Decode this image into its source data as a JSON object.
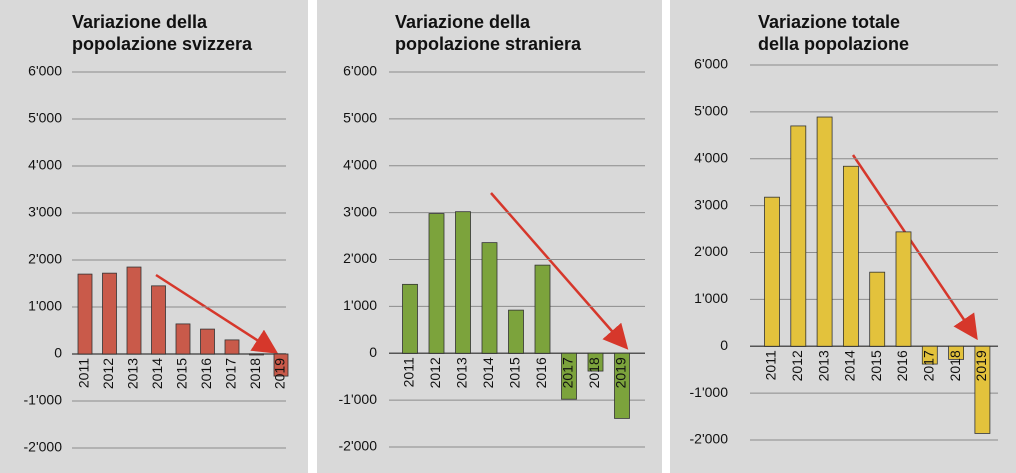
{
  "chart_data": [
    {
      "type": "bar",
      "title": [
        "Variazione della",
        "popolazione svizzera"
      ],
      "color": "#c95a4a",
      "categories": [
        "2011",
        "2012",
        "2013",
        "2014",
        "2015",
        "2016",
        "2017",
        "2018",
        "2019"
      ],
      "values": [
        1700,
        1720,
        1850,
        1450,
        640,
        530,
        300,
        -20,
        -470
      ],
      "ylim": [
        -2000,
        6000
      ],
      "yticks": [
        {
          "value": -2000,
          "label": "-2'000"
        },
        {
          "value": -1000,
          "label": "-1'000"
        },
        0,
        {
          "value": 1000,
          "label": "1'000"
        },
        {
          "value": 2000,
          "label": "2'000"
        },
        {
          "value": 3000,
          "label": "3'000"
        },
        {
          "value": 4000,
          "label": "4'000"
        },
        {
          "value": 5000,
          "label": "5'000"
        },
        {
          "value": 6000,
          "label": "6'000"
        }
      ],
      "grid": true
    },
    {
      "type": "bar",
      "title": [
        "Variazione della",
        "popolazione straniera"
      ],
      "color": "#7ca33c",
      "categories": [
        "2011",
        "2012",
        "2013",
        "2014",
        "2015",
        "2016",
        "2017",
        "2018",
        "2019"
      ],
      "values": [
        1470,
        2980,
        3020,
        2360,
        920,
        1880,
        -980,
        -380,
        -1390
      ],
      "ylim": [
        -2000,
        6000
      ],
      "yticks": [
        {
          "value": -2000,
          "label": "-2'000"
        },
        {
          "value": -1000,
          "label": "-1'000"
        },
        0,
        {
          "value": 1000,
          "label": "1'000"
        },
        {
          "value": 2000,
          "label": "2'000"
        },
        {
          "value": 3000,
          "label": "3'000"
        },
        {
          "value": 4000,
          "label": "4'000"
        },
        {
          "value": 5000,
          "label": "5'000"
        },
        {
          "value": 6000,
          "label": "6'000"
        }
      ],
      "grid": true
    },
    {
      "type": "bar",
      "title": [
        "Variazione totale",
        "della popolazione"
      ],
      "color": "#e3c23c",
      "categories": [
        "2011",
        "2012",
        "2013",
        "2014",
        "2015",
        "2016",
        "2017",
        "2018",
        "2019"
      ],
      "values": [
        3180,
        4700,
        4890,
        3840,
        1580,
        2440,
        -380,
        -280,
        -1860
      ],
      "ylim": [
        -2000,
        6000
      ],
      "yticks": [
        {
          "value": -2000,
          "label": "-2'000"
        },
        {
          "value": -1000,
          "label": "-1'000"
        },
        0,
        {
          "value": 1000,
          "label": "1'000"
        },
        {
          "value": 2000,
          "label": "2'000"
        },
        {
          "value": 3000,
          "label": "3'000"
        },
        {
          "value": 4000,
          "label": "4'000"
        },
        {
          "value": 5000,
          "label": "5'000"
        },
        {
          "value": 6000,
          "label": "6'000"
        }
      ],
      "grid": true
    }
  ]
}
